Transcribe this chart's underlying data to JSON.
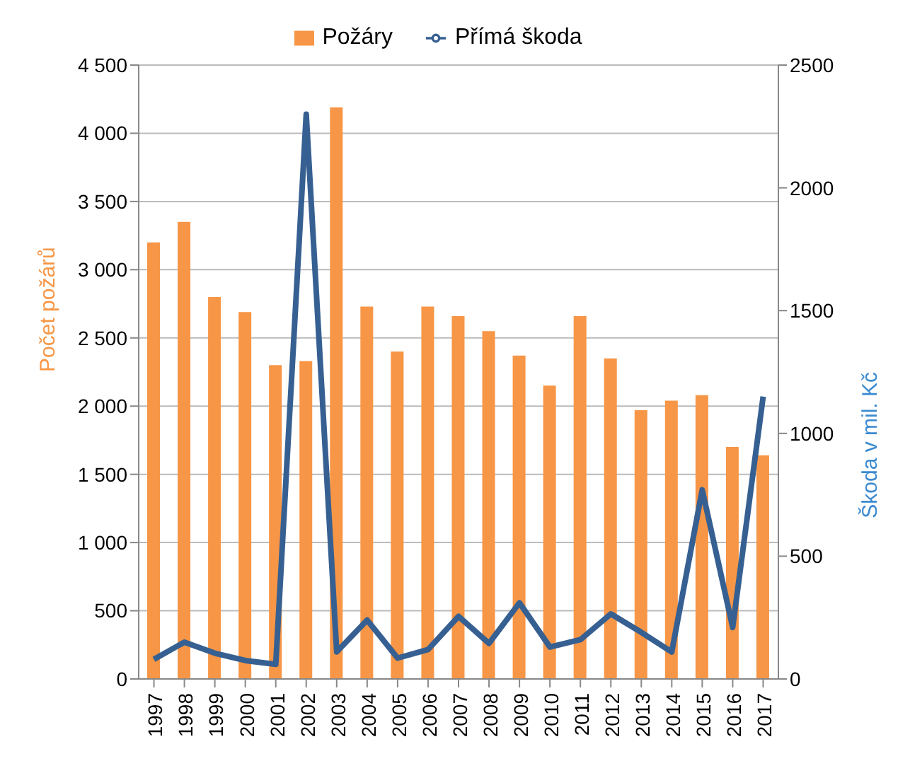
{
  "chart_data": {
    "type": "bar",
    "categories": [
      "1997",
      "1998",
      "1999",
      "2000",
      "2001",
      "2002",
      "2003",
      "2004",
      "2005",
      "2006",
      "2007",
      "2008",
      "2009",
      "2010",
      "2011",
      "2012",
      "2013",
      "2014",
      "2015",
      "2016",
      "2017"
    ],
    "series": [
      {
        "name": "Požáry",
        "color": "#f79646",
        "values": [
          3200,
          3350,
          2800,
          2690,
          2300,
          2330,
          4190,
          2730,
          2400,
          2730,
          2660,
          2550,
          2370,
          2150,
          2660,
          2350,
          1970,
          2040,
          2080,
          1700,
          1640
        ]
      },
      {
        "name": "Přímá škoda",
        "type": "line",
        "axis": "y2",
        "color": "#376092",
        "values": [
          80,
          150,
          105,
          75,
          60,
          2300,
          110,
          240,
          85,
          120,
          255,
          145,
          310,
          130,
          160,
          265,
          190,
          110,
          770,
          210,
          1150
        ]
      }
    ],
    "ylabel": "Počet požárů",
    "y2label": "Škoda v mil. Kč",
    "ylim": [
      0,
      4500
    ],
    "yticks": [
      {
        "value": 0,
        "label": "0"
      },
      {
        "value": 500,
        "label": "500"
      },
      {
        "value": 1000,
        "label": "1 000"
      },
      {
        "value": 1500,
        "label": "1 500"
      },
      {
        "value": 2000,
        "label": "2 000"
      },
      {
        "value": 2500,
        "label": "2 500"
      },
      {
        "value": 3000,
        "label": "3 000"
      },
      {
        "value": 3500,
        "label": "3 500"
      },
      {
        "value": 4000,
        "label": "4 000"
      },
      {
        "value": 4500,
        "label": "4 500"
      }
    ],
    "y2lim": [
      0,
      2500
    ],
    "y2ticks": [
      0,
      500,
      1000,
      1500,
      2000,
      2500
    ],
    "grid": "y",
    "legend": "top",
    "marker": "none"
  }
}
